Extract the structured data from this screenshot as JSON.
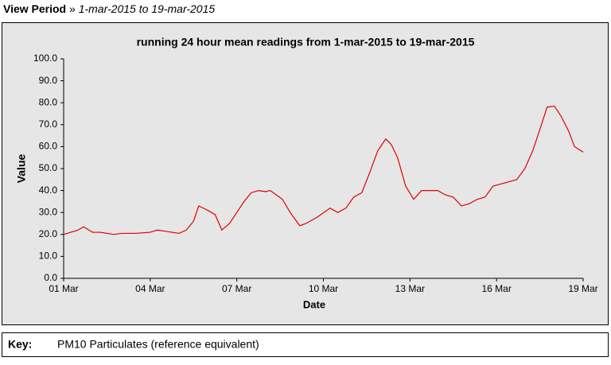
{
  "header": {
    "label": "View Period",
    "separator": "»",
    "period": "1-mar-2015 to 19-mar-2015"
  },
  "key": {
    "label": "Key:"
  },
  "chart_data": {
    "type": "line",
    "title": "running 24 hour mean readings from 1-mar-2015 to 19-mar-2015",
    "x_label": "Date",
    "y_label": "Value",
    "x": [
      1,
      1.25,
      1.5,
      1.69,
      2,
      2.25,
      2.5,
      2.75,
      3,
      3.5,
      4,
      4.25,
      4.5,
      5,
      5.25,
      5.5,
      5.68,
      5.99,
      6.25,
      6.48,
      6.75,
      7,
      7.25,
      7.5,
      7.75,
      8,
      8.16,
      8.58,
      8.85,
      9.18,
      9.4,
      9.8,
      10.23,
      10.5,
      10.78,
      11.05,
      11.33,
      11.6,
      11.88,
      12.16,
      12.35,
      12.57,
      12.85,
      13.13,
      13.4,
      13.68,
      13.96,
      14.23,
      14.5,
      14.78,
      15.05,
      15.33,
      15.6,
      15.88,
      16.15,
      16.43,
      16.7,
      16.98,
      17.25,
      17.53,
      17.75,
      18,
      18.23,
      18.5,
      18.7,
      19
    ],
    "series": [
      {
        "name": "PM10 Particulates (reference equivalent)",
        "color": "#e00000",
        "values": [
          20,
          21,
          22,
          23.5,
          21,
          21,
          20.5,
          20,
          20.5,
          20.5,
          21,
          22,
          21.5,
          20.5,
          22,
          26,
          33,
          31,
          29,
          22,
          25,
          30,
          35,
          39,
          40,
          39.5,
          40,
          36,
          30,
          24,
          25,
          28,
          32,
          30,
          32,
          37,
          39,
          48,
          58,
          63.5,
          61,
          55,
          42,
          36,
          40,
          40,
          40,
          38,
          37,
          33,
          34,
          36,
          37,
          42,
          43,
          44,
          45,
          50,
          58,
          69,
          78,
          78.5,
          74,
          67,
          60,
          57.5
        ]
      }
    ],
    "xlim": [
      1,
      19
    ],
    "xticks": [
      {
        "value": 1,
        "label": "01 Mar"
      },
      {
        "value": 4,
        "label": "04 Mar"
      },
      {
        "value": 7,
        "label": "07 Mar"
      },
      {
        "value": 10,
        "label": "10 Mar"
      },
      {
        "value": 13,
        "label": "13 Mar"
      },
      {
        "value": 16,
        "label": "16 Mar"
      },
      {
        "value": 19,
        "label": "19 Mar"
      }
    ],
    "ylim": [
      0,
      100
    ],
    "yticks": [
      {
        "value": 0,
        "label": "0.0"
      },
      {
        "value": 10,
        "label": "10.0"
      },
      {
        "value": 20,
        "label": "20.0"
      },
      {
        "value": 30,
        "label": "30.0"
      },
      {
        "value": 40,
        "label": "40.0"
      },
      {
        "value": 50,
        "label": "50.0"
      },
      {
        "value": 60,
        "label": "60.0"
      },
      {
        "value": 70,
        "label": "70.0"
      },
      {
        "value": 80,
        "label": "80.0"
      },
      {
        "value": 90,
        "label": "90.0"
      },
      {
        "value": 100,
        "label": "100.0"
      }
    ],
    "grid": false
  }
}
